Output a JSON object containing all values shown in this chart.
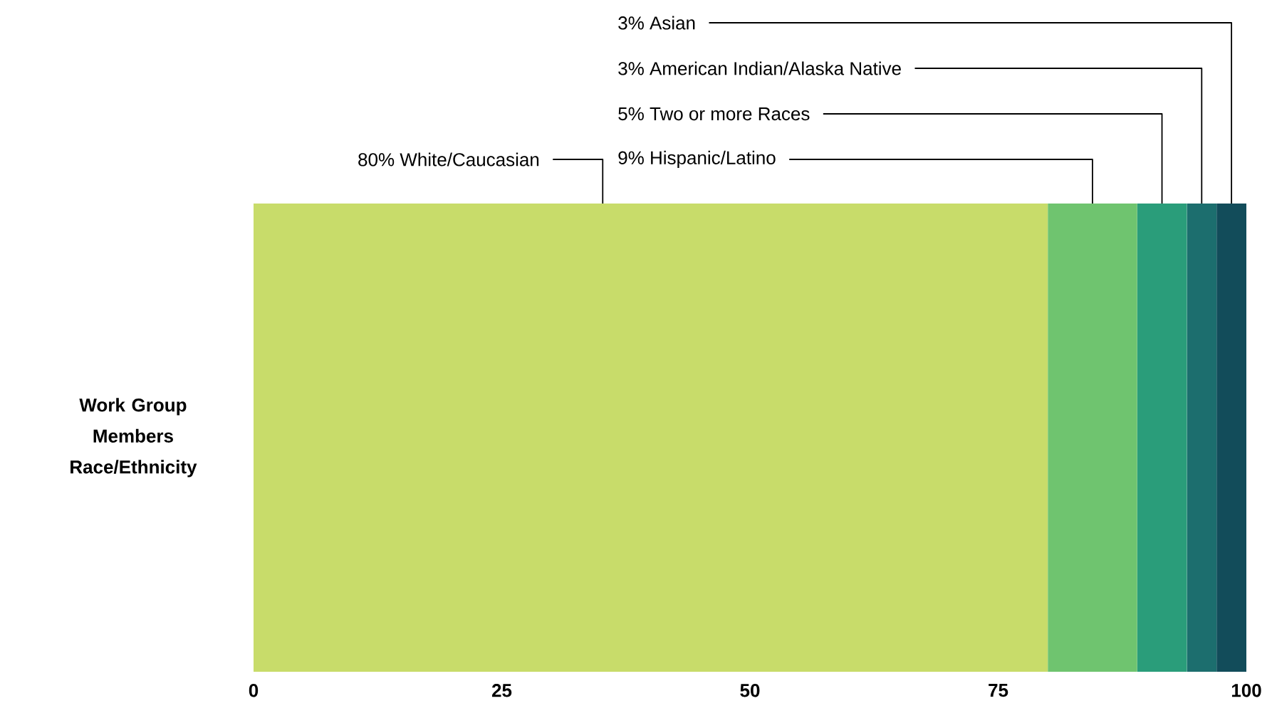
{
  "chart_data": {
    "type": "bar",
    "orientation": "horizontal",
    "stacked": true,
    "categories": [
      "Work Group Members Race/Ethnicity"
    ],
    "xlim": [
      0,
      100
    ],
    "xticks": [
      0,
      25,
      50,
      75,
      100
    ],
    "grid": false,
    "series": [
      {
        "name": "80% White/Caucasian",
        "color": "#c8dc6a",
        "values": [
          80
        ]
      },
      {
        "name": "9% Hispanic/Latino",
        "color": "#6fc46f",
        "values": [
          9
        ]
      },
      {
        "name": "5% Two or more Races",
        "color": "#2a9d7a",
        "values": [
          5
        ]
      },
      {
        "name": "3% American Indian/Alaska Native",
        "color": "#1c6e6e",
        "values": [
          3
        ]
      },
      {
        "name": "3% Asian",
        "color": "#124c5a",
        "values": [
          3
        ]
      }
    ]
  }
}
